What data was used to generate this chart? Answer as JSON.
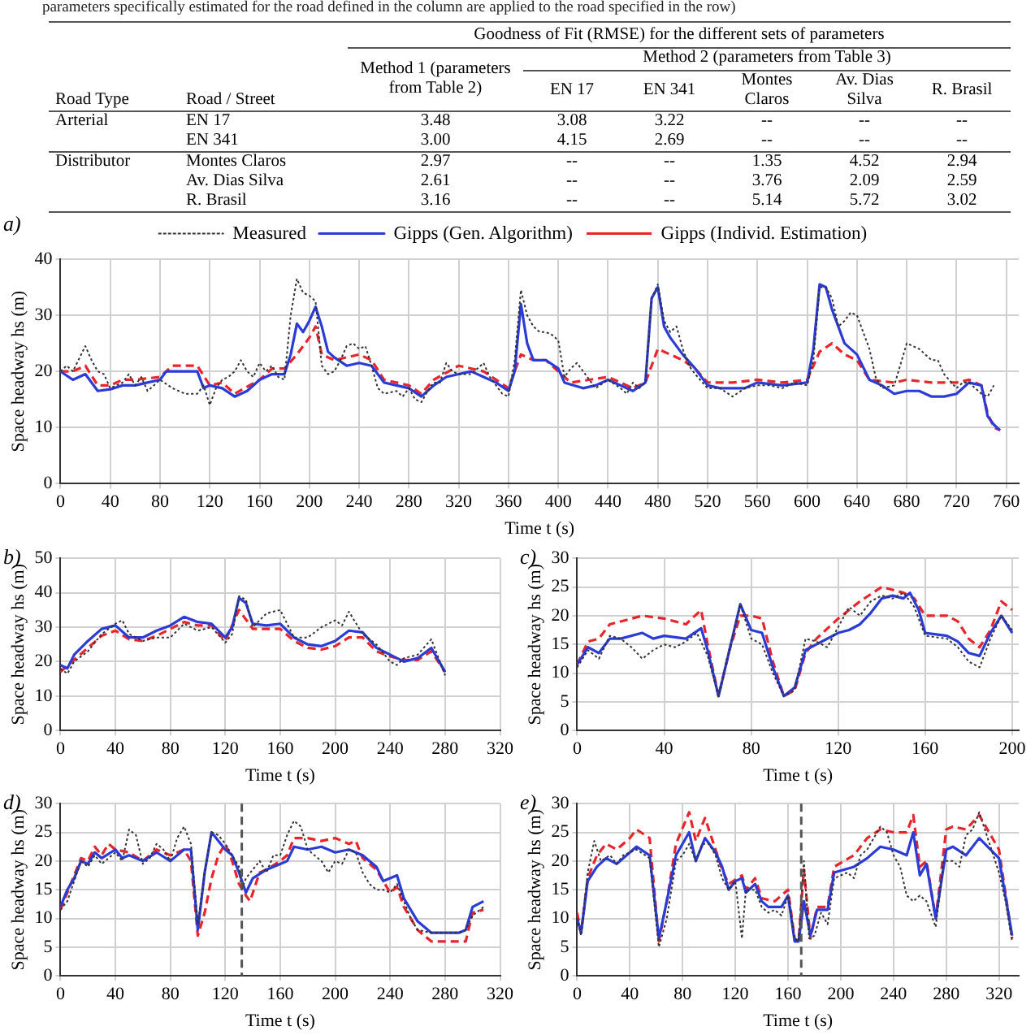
{
  "chart_data": [
    {
      "type": "other",
      "annotations": [
        "parameters specifically estimated for the road defined in the column are applied to the road specified in the row)",
        "Goodness of Fit (RMSE) for the different sets of parameters",
        "Method 2 (parameters from Table 3)"
      ],
      "categories": [
        "Road Type",
        "Road / Street",
        "Method 1 (parameters from Table 2)",
        "EN 17",
        "EN 341",
        "Montes Claros",
        "Av. Dias Silva",
        "R. Brasil"
      ],
      "cell_labels": [
        [
          "Arterial",
          "EN 17",
          "3.48",
          "3.08",
          "3.22",
          "--",
          "--",
          "--"
        ],
        [
          null,
          "EN 341",
          "3.00",
          "4.15",
          "2.69",
          "--",
          "--",
          "--"
        ],
        [
          "Distributor",
          "Montes Claros",
          "2.97",
          "--",
          "--",
          "1.35",
          "4.52",
          "2.94"
        ],
        [
          null,
          "Av. Dias Silva",
          "2.61",
          "--",
          "--",
          "3.76",
          "2.09",
          "2.59"
        ],
        [
          null,
          "R. Brasil",
          "3.16",
          "--",
          "--",
          "5.14",
          "5.72",
          "3.02"
        ]
      ]
    },
    {
      "type": "line",
      "title": "a)",
      "xlabel": "Time t (s)",
      "ylabel": "Space headway hs (m)",
      "xlim": [
        0,
        770
      ],
      "xticks": [
        0,
        40,
        80,
        120,
        160,
        200,
        240,
        280,
        320,
        360,
        400,
        440,
        480,
        520,
        560,
        600,
        640,
        680,
        720,
        760
      ],
      "ylim": [
        0,
        40
      ],
      "yticks": [
        0,
        10,
        20,
        30,
        40
      ],
      "grid": true,
      "legend": "top",
      "series": [
        {
          "name": "Measured",
          "color": "#333333",
          "line_style": "dotted",
          "x": [
            0,
            5,
            10,
            20,
            25,
            30,
            35,
            40,
            50,
            55,
            60,
            65,
            70,
            80,
            90,
            100,
            110,
            115,
            120,
            125,
            130,
            135,
            140,
            145,
            150,
            155,
            160,
            165,
            170,
            175,
            180,
            185,
            190,
            195,
            200,
            205,
            210,
            215,
            220,
            225,
            230,
            235,
            240,
            245,
            250,
            255,
            260,
            270,
            275,
            280,
            285,
            290,
            295,
            300,
            305,
            310,
            315,
            320,
            330,
            340,
            345,
            355,
            360,
            365,
            370,
            375,
            380,
            385,
            390,
            395,
            400,
            405,
            410,
            415,
            420,
            430,
            440,
            450,
            455,
            460,
            465,
            470,
            475,
            480,
            485,
            490,
            495,
            500,
            505,
            510,
            520,
            530,
            540,
            550,
            560,
            570,
            580,
            590,
            600,
            605,
            610,
            615,
            620,
            625,
            630,
            635,
            640,
            650,
            655,
            660,
            670,
            680,
            690,
            700,
            705,
            710,
            720,
            725,
            730,
            740,
            745,
            750
          ],
          "values": [
            20,
            21,
            20,
            24.5,
            22,
            20,
            19.5,
            17,
            18,
            19.5,
            17.5,
            19,
            16.5,
            18.5,
            17,
            16,
            16,
            17.5,
            14,
            17,
            18.5,
            19,
            20,
            22,
            20,
            19,
            21.5,
            20,
            21,
            19,
            18.5,
            30,
            36.5,
            34,
            33.5,
            32.5,
            21,
            19.5,
            20,
            22,
            24.5,
            25,
            24,
            24.5,
            21,
            17,
            16,
            16.5,
            15.5,
            17,
            15,
            14.5,
            16.5,
            18,
            18,
            21.5,
            20,
            19.5,
            19.5,
            21.5,
            19,
            16,
            15.5,
            22,
            34.5,
            30,
            28,
            27,
            27,
            26.5,
            25.5,
            19,
            20.5,
            21.5,
            20,
            17,
            18.5,
            17,
            16,
            18,
            17,
            18,
            33,
            35.5,
            29,
            27,
            28,
            24,
            21,
            19.5,
            17,
            17,
            15.5,
            17,
            17.5,
            17.5,
            17,
            18,
            17.5,
            22,
            35,
            35,
            33,
            28,
            29,
            30.5,
            30,
            24,
            19,
            17,
            17.5,
            25,
            24,
            22,
            22,
            19.5,
            17,
            18,
            18,
            16,
            15.5,
            17.5
          ]
        },
        {
          "name": "Gipps (Gen. Algorithm)",
          "color": "#2a3bd6",
          "line_style": "solid",
          "x": [
            0,
            10,
            20,
            30,
            40,
            50,
            60,
            70,
            80,
            85,
            110,
            115,
            120,
            130,
            140,
            150,
            160,
            170,
            180,
            185,
            190,
            195,
            200,
            205,
            210,
            215,
            220,
            230,
            240,
            250,
            260,
            270,
            280,
            290,
            300,
            310,
            320,
            330,
            340,
            350,
            360,
            365,
            370,
            375,
            380,
            390,
            400,
            405,
            420,
            430,
            440,
            460,
            470,
            475,
            480,
            485,
            490,
            500,
            510,
            520,
            530,
            550,
            560,
            580,
            600,
            605,
            610,
            615,
            620,
            630,
            640,
            650,
            660,
            670,
            680,
            690,
            700,
            710,
            720,
            730,
            740,
            745,
            750,
            755
          ],
          "values": [
            20,
            18.5,
            19.5,
            16.5,
            16.8,
            17.5,
            17.5,
            18,
            18.5,
            20,
            20,
            17,
            17.5,
            17,
            15.5,
            16.5,
            18.5,
            19.5,
            19.5,
            23,
            28.5,
            27,
            29,
            31.5,
            28,
            23.5,
            22.5,
            21,
            21.5,
            21,
            18,
            17.5,
            17,
            15.5,
            17.5,
            19,
            19.5,
            20,
            19,
            18,
            16.5,
            20,
            32,
            25,
            22,
            22,
            20.5,
            18,
            17,
            17.5,
            18.5,
            16.5,
            18,
            33,
            35,
            28,
            26,
            23,
            20.5,
            17.5,
            17,
            17,
            18,
            17.5,
            18,
            24,
            35.5,
            35,
            31,
            25,
            23,
            18.5,
            17.5,
            16,
            16.5,
            16.5,
            15.5,
            15.5,
            16,
            18,
            17.5,
            12,
            10.5,
            9.5
          ]
        },
        {
          "name": "Gipps (Individ. Estimation)",
          "color": "#e8252a",
          "line_style": "dashed",
          "x": [
            0,
            10,
            20,
            30,
            40,
            50,
            60,
            80,
            90,
            110,
            120,
            130,
            140,
            160,
            170,
            180,
            190,
            200,
            205,
            210,
            220,
            240,
            250,
            260,
            280,
            290,
            300,
            320,
            340,
            360,
            365,
            370,
            380,
            390,
            400,
            410,
            440,
            460,
            470,
            480,
            490,
            500,
            510,
            520,
            540,
            560,
            580,
            600,
            610,
            620,
            630,
            640,
            650,
            670,
            680,
            700,
            720,
            730,
            740,
            745,
            750,
            755
          ],
          "values": [
            20,
            20,
            21,
            17.5,
            17.5,
            18.5,
            18.5,
            19,
            21,
            21,
            17.5,
            18,
            16,
            18.5,
            20.5,
            20.5,
            23,
            26,
            28,
            23,
            22,
            23,
            22,
            18.5,
            17.5,
            16,
            18.5,
            21,
            20,
            17,
            20,
            23,
            22,
            22,
            20,
            18,
            19,
            17,
            18,
            24,
            23,
            22,
            20.5,
            18,
            18,
            18.5,
            18,
            18.5,
            23.5,
            25,
            23,
            22,
            18.5,
            18,
            18.5,
            18,
            18,
            18.5,
            17.5,
            12.5,
            10,
            9.5
          ]
        }
      ]
    },
    {
      "type": "line",
      "title": "b)",
      "xlabel": "Time t (s)",
      "ylabel": "Space headway hs (m)",
      "xlim": [
        0,
        320
      ],
      "xticks": [
        0,
        40,
        80,
        120,
        160,
        200,
        240,
        280,
        320
      ],
      "ylim": [
        0,
        50
      ],
      "yticks": [
        0,
        10,
        20,
        30,
        40,
        50
      ],
      "grid": true,
      "series": [
        {
          "color": "#333333",
          "line_style": "dotted",
          "x": [
            0,
            5,
            10,
            20,
            30,
            40,
            45,
            50,
            60,
            70,
            80,
            90,
            100,
            110,
            120,
            125,
            130,
            135,
            140,
            150,
            160,
            170,
            180,
            190,
            200,
            205,
            210,
            220,
            230,
            240,
            245,
            250,
            260,
            270,
            280
          ],
          "values": [
            18,
            16.5,
            20,
            23,
            28,
            31,
            32,
            28,
            26,
            27,
            27,
            31,
            29,
            30,
            25.5,
            28,
            39,
            38,
            30,
            34,
            35,
            27,
            27,
            30,
            32,
            30.5,
            34.5,
            28,
            25,
            20,
            19,
            21,
            22,
            26.5,
            16
          ]
        },
        {
          "color": "#2a3bd6",
          "line_style": "solid",
          "x": [
            0,
            5,
            10,
            20,
            30,
            40,
            50,
            60,
            70,
            80,
            90,
            100,
            110,
            120,
            125,
            130,
            135,
            140,
            150,
            160,
            170,
            180,
            190,
            200,
            210,
            220,
            230,
            240,
            250,
            260,
            270,
            280
          ],
          "values": [
            19,
            18,
            22,
            26,
            29.5,
            30.5,
            27,
            27,
            29,
            30.5,
            33,
            31.5,
            31,
            27,
            30,
            38.5,
            37,
            31,
            30.5,
            31,
            27,
            25,
            24.5,
            26,
            29,
            28.5,
            24,
            22,
            20,
            21,
            24,
            17
          ]
        },
        {
          "color": "#e8252a",
          "line_style": "dashed",
          "x": [
            0,
            10,
            20,
            30,
            40,
            50,
            60,
            70,
            80,
            90,
            100,
            110,
            120,
            130,
            140,
            150,
            160,
            170,
            180,
            190,
            200,
            210,
            220,
            230,
            240,
            250,
            260,
            270,
            280
          ],
          "values": [
            17,
            20.5,
            24,
            27.5,
            29,
            26.5,
            26,
            27.5,
            29.5,
            31.5,
            30.5,
            30.5,
            26,
            35,
            29.5,
            29.5,
            29.5,
            26,
            24,
            23.5,
            24.5,
            27,
            27,
            23,
            21.5,
            20.5,
            20.5,
            23,
            17
          ]
        }
      ]
    },
    {
      "type": "line",
      "title": "c)",
      "xlabel": "Time t (s)",
      "ylabel": "Space headway hs (m)",
      "xlim": [
        0,
        203
      ],
      "xticks": [
        0,
        40,
        80,
        120,
        160,
        200
      ],
      "ylim": [
        0,
        30
      ],
      "yticks": [
        0,
        5,
        10,
        15,
        20,
        25,
        30
      ],
      "grid": true,
      "series": [
        {
          "color": "#333333",
          "line_style": "dotted",
          "x": [
            0,
            5,
            10,
            15,
            20,
            25,
            30,
            35,
            40,
            45,
            50,
            55,
            60,
            65,
            70,
            75,
            80,
            85,
            90,
            95,
            100,
            105,
            110,
            115,
            120,
            125,
            130,
            135,
            140,
            145,
            150,
            155,
            160,
            170,
            175,
            180,
            185,
            190,
            195,
            200
          ],
          "values": [
            11,
            14,
            12.5,
            16.5,
            16,
            14.5,
            12.5,
            14,
            15,
            14.5,
            15.5,
            17,
            13,
            6,
            14,
            22,
            16,
            15,
            10,
            6,
            7,
            16,
            15.5,
            14.5,
            18,
            21.5,
            20,
            22.5,
            23.5,
            23,
            24,
            21.5,
            16.5,
            16,
            14.5,
            12,
            11,
            16,
            20,
            17.5
          ]
        },
        {
          "color": "#2a3bd6",
          "line_style": "solid",
          "x": [
            0,
            5,
            10,
            15,
            20,
            30,
            35,
            40,
            50,
            57,
            60,
            65,
            70,
            75,
            80,
            85,
            90,
            95,
            100,
            105,
            110,
            120,
            125,
            130,
            135,
            140,
            145,
            150,
            153,
            157,
            160,
            170,
            175,
            180,
            185,
            190,
            195,
            200
          ],
          "values": [
            11.5,
            14.5,
            13.5,
            16,
            16,
            17,
            16,
            16.5,
            16,
            17.8,
            14,
            6,
            14,
            22,
            17.5,
            17,
            11,
            6,
            7.5,
            14,
            15,
            17,
            17.5,
            18.5,
            20.5,
            23,
            23.5,
            23,
            24,
            21,
            17,
            16.5,
            15.5,
            13.5,
            13,
            17,
            20,
            17
          ]
        },
        {
          "color": "#e8252a",
          "line_style": "dashed",
          "x": [
            0,
            5,
            10,
            15,
            20,
            30,
            40,
            50,
            57,
            60,
            65,
            70,
            75,
            80,
            85,
            90,
            95,
            100,
            105,
            110,
            120,
            130,
            140,
            150,
            155,
            160,
            170,
            175,
            180,
            185,
            190,
            195,
            200
          ],
          "values": [
            11.5,
            15.5,
            16,
            18.5,
            19,
            20,
            19.5,
            18.5,
            21,
            15,
            6,
            14,
            20,
            20,
            19.5,
            12,
            6,
            7,
            13.5,
            16,
            19.5,
            22.5,
            25,
            24,
            23,
            20,
            20,
            19,
            16,
            14.5,
            17.5,
            22.5,
            21
          ]
        }
      ]
    },
    {
      "type": "line",
      "title": "d)",
      "xlabel": "Time t (s)",
      "ylabel": "Space headway hs (m)",
      "xlim": [
        0,
        320
      ],
      "xticks": [
        0,
        40,
        80,
        120,
        160,
        200,
        240,
        280,
        320
      ],
      "ylim": [
        0,
        30
      ],
      "yticks": [
        0,
        5,
        10,
        15,
        20,
        25,
        30
      ],
      "grid": true,
      "ref_lines": [
        {
          "axis": "x",
          "value": 132,
          "color": "#555555",
          "line_style": "dashed"
        }
      ],
      "series": [
        {
          "color": "#333333",
          "line_style": "dotted",
          "x": [
            0,
            5,
            10,
            15,
            20,
            25,
            30,
            40,
            45,
            50,
            55,
            60,
            65,
            70,
            75,
            80,
            85,
            90,
            95,
            100,
            105,
            110,
            115,
            120,
            125,
            130,
            132,
            135,
            140,
            145,
            150,
            155,
            160,
            165,
            170,
            175,
            180,
            190,
            195,
            200,
            205,
            210,
            215,
            220,
            225,
            230,
            235,
            240,
            245,
            250,
            255,
            260,
            270,
            280,
            290,
            295,
            300,
            308
          ],
          "values": [
            11.5,
            13,
            16.5,
            20,
            19,
            21,
            19.5,
            21.5,
            20,
            25.5,
            24.5,
            19.5,
            20.5,
            23,
            22,
            20,
            24,
            26,
            23,
            9,
            18,
            25,
            24.5,
            23,
            21,
            19,
            15,
            17,
            18.5,
            20,
            18,
            21,
            21,
            24.5,
            27,
            26,
            22,
            20,
            18,
            20,
            19.5,
            22,
            21.5,
            18,
            16,
            15,
            15,
            14.5,
            16,
            13,
            10,
            8,
            7.5,
            7.5,
            7.5,
            8,
            10.5,
            12
          ]
        },
        {
          "color": "#2a3bd6",
          "line_style": "solid",
          "x": [
            0,
            5,
            10,
            15,
            20,
            25,
            30,
            40,
            45,
            50,
            60,
            70,
            80,
            90,
            95,
            100,
            105,
            110,
            120,
            125,
            130,
            135,
            140,
            150,
            160,
            165,
            170,
            180,
            190,
            200,
            210,
            215,
            220,
            230,
            235,
            245,
            250,
            260,
            270,
            280,
            290,
            295,
            300,
            308
          ],
          "values": [
            12,
            15,
            17,
            20,
            19.5,
            21.5,
            20.5,
            22,
            20.5,
            21,
            20,
            21.5,
            20,
            22,
            22,
            8,
            18,
            25,
            22,
            21,
            18,
            14.5,
            17,
            18.5,
            19.5,
            20,
            22.5,
            22,
            22.5,
            21.5,
            22,
            21.5,
            21,
            19,
            16.5,
            17.5,
            13.5,
            9.5,
            7.5,
            7.5,
            7.5,
            8,
            12,
            13
          ]
        },
        {
          "color": "#e8252a",
          "line_style": "dashed",
          "x": [
            0,
            10,
            15,
            20,
            25,
            30,
            35,
            40,
            50,
            60,
            70,
            80,
            90,
            95,
            100,
            105,
            110,
            115,
            120,
            125,
            130,
            135,
            138,
            145,
            150,
            160,
            165,
            170,
            180,
            190,
            200,
            210,
            215,
            220,
            230,
            240,
            245,
            250,
            260,
            270,
            280,
            290,
            295,
            300,
            308
          ],
          "values": [
            11.5,
            17.5,
            20.5,
            20,
            22.5,
            21,
            23,
            22,
            21.5,
            20,
            22,
            21,
            22,
            20,
            7,
            11,
            17,
            21,
            23,
            20,
            16,
            14,
            13,
            18,
            18.5,
            20,
            21,
            24,
            24,
            23.5,
            24,
            23,
            23.5,
            20.5,
            18.5,
            14.5,
            15.5,
            12,
            8,
            6,
            6,
            6,
            6,
            11,
            11.5
          ]
        }
      ]
    },
    {
      "type": "line",
      "title": "e)",
      "xlabel": "Time t (s)",
      "ylabel": "Space headway hs (m)",
      "xlim": [
        0,
        335
      ],
      "xticks": [
        0,
        40,
        80,
        120,
        160,
        200,
        240,
        280,
        320
      ],
      "ylim": [
        0,
        30
      ],
      "yticks": [
        0,
        5,
        10,
        15,
        20,
        25,
        30
      ],
      "grid": true,
      "ref_lines": [
        {
          "axis": "x",
          "value": 170,
          "color": "#555555",
          "line_style": "dashed"
        }
      ],
      "series": [
        {
          "color": "#333333",
          "line_style": "dotted",
          "x": [
            0,
            3,
            8,
            13,
            18,
            25,
            30,
            35,
            45,
            55,
            62,
            68,
            75,
            80,
            85,
            90,
            95,
            100,
            105,
            110,
            115,
            120,
            125,
            128,
            135,
            140,
            145,
            150,
            155,
            160,
            165,
            168,
            172,
            176,
            180,
            185,
            190,
            195,
            200,
            205,
            210,
            215,
            220,
            230,
            235,
            240,
            245,
            250,
            255,
            260,
            265,
            272,
            278,
            285,
            290,
            295,
            300,
            305,
            310,
            320,
            325,
            330
          ],
          "values": [
            10,
            7,
            18,
            23.5,
            20,
            21,
            19.5,
            21,
            22,
            20.5,
            5,
            10,
            20,
            21,
            23,
            20,
            23,
            23,
            21,
            17,
            15,
            16.5,
            6.5,
            15,
            15,
            12,
            11,
            11.5,
            10.5,
            14,
            6.5,
            6,
            20,
            6.5,
            7,
            11,
            9,
            17,
            17.5,
            18,
            17,
            21,
            22,
            26,
            25,
            21,
            19,
            14,
            13,
            14,
            13,
            8.5,
            20,
            20,
            19,
            24.5,
            25.5,
            28.5,
            25,
            18,
            13,
            6
          ]
        },
        {
          "color": "#2a3bd6",
          "line_style": "solid",
          "x": [
            0,
            3,
            8,
            15,
            22,
            30,
            40,
            45,
            55,
            62,
            68,
            75,
            85,
            90,
            97,
            105,
            110,
            115,
            120,
            125,
            128,
            135,
            140,
            145,
            150,
            155,
            160,
            165,
            168,
            172,
            177,
            182,
            190,
            195,
            210,
            220,
            230,
            240,
            250,
            255,
            260,
            265,
            272,
            280,
            285,
            295,
            305,
            320,
            330
          ],
          "values": [
            10,
            7.5,
            16.5,
            19,
            20.5,
            19.5,
            21.5,
            22.5,
            21,
            6.5,
            13,
            21,
            25,
            20,
            24,
            21.5,
            19,
            15,
            16.5,
            17,
            14.5,
            16,
            13,
            12,
            12,
            12,
            14,
            6,
            6,
            13,
            7,
            11.5,
            11.5,
            18,
            19,
            20.5,
            22.5,
            22,
            21,
            25,
            17.5,
            19.5,
            10,
            22,
            22.5,
            21,
            24,
            20.5,
            7
          ]
        },
        {
          "color": "#e8252a",
          "line_style": "dashed",
          "x": [
            0,
            3,
            8,
            15,
            22,
            30,
            40,
            45,
            55,
            62,
            68,
            75,
            85,
            90,
            97,
            105,
            110,
            115,
            125,
            128,
            135,
            140,
            150,
            160,
            165,
            168,
            172,
            177,
            182,
            190,
            195,
            210,
            220,
            230,
            240,
            250,
            255,
            260,
            265,
            272,
            280,
            285,
            295,
            305,
            320,
            330
          ],
          "values": [
            11,
            7.5,
            17,
            21,
            23,
            22,
            24,
            25.5,
            24,
            6,
            13,
            23,
            28.5,
            23.5,
            27.5,
            22,
            18.5,
            16,
            17.5,
            15,
            17,
            13.5,
            13,
            15,
            6.5,
            6,
            18.5,
            6.5,
            12,
            12,
            19,
            21,
            24,
            25.5,
            25,
            25,
            28,
            19,
            20,
            10,
            25.5,
            26,
            25.5,
            28,
            22,
            6.5
          ]
        }
      ]
    }
  ]
}
